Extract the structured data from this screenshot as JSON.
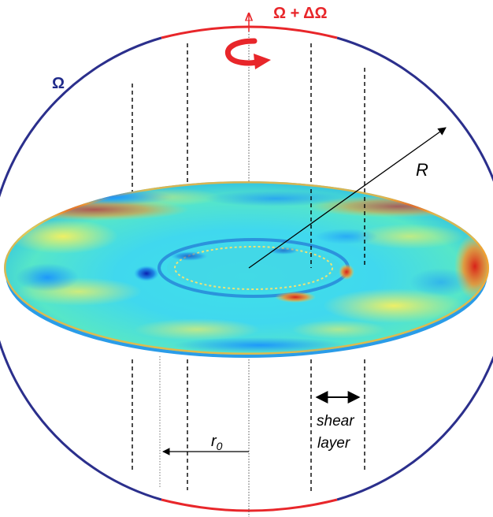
{
  "labels": {
    "omega": "Ω",
    "omega_plus_delta": "Ω + ΔΩ",
    "radius": "R",
    "r0_main": "r",
    "r0_sub": "0",
    "shear_line1": "shear",
    "shear_line2": "layer"
  },
  "colors": {
    "outer_sphere": "#2b2f8c",
    "inner_cap": "#e8262a",
    "omega_text": "#1f2a8a",
    "omega_delta_text": "#e8262a",
    "rotation_arrow": "#e8262a",
    "field_low": "#00a8ff",
    "field_mid": "#2fd7e8",
    "field_high_yellow": "#ffe84a",
    "field_high_red": "#e52a1a",
    "field_dark_blue": "#0a1fb0"
  }
}
